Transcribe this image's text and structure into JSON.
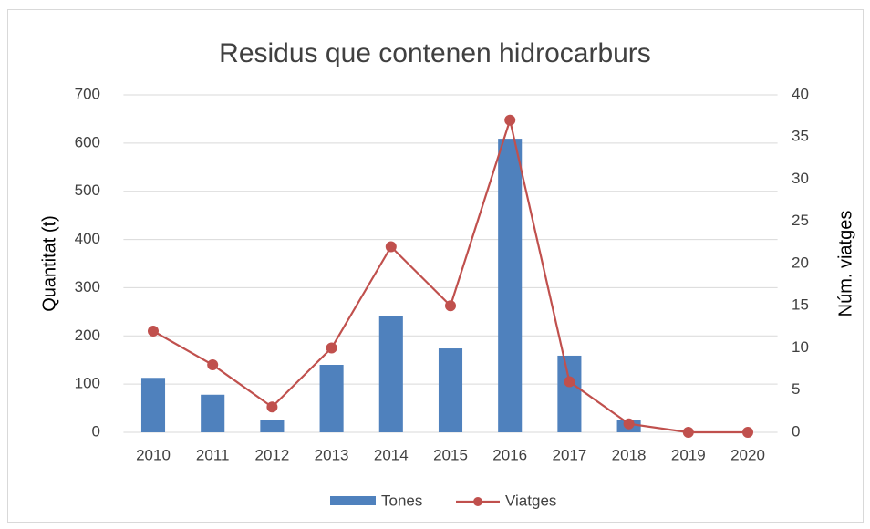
{
  "chart_data": {
    "type": "bar_line",
    "title": "Residus que contenen hidrocarburs",
    "categories": [
      "2010",
      "2011",
      "2012",
      "2013",
      "2014",
      "2015",
      "2016",
      "2017",
      "2018",
      "2019",
      "2020"
    ],
    "series": [
      {
        "name": "Tones",
        "color": "#4f81bd",
        "type": "bar",
        "values": [
          113,
          78,
          26,
          140,
          242,
          174,
          609,
          159,
          26,
          0,
          0
        ]
      },
      {
        "name": "Viatges",
        "color": "#c0504d",
        "type": "line",
        "axis": "y2",
        "values": [
          12,
          8,
          3,
          10,
          22,
          15,
          37,
          6,
          1,
          0,
          0
        ]
      }
    ],
    "ylabel": "Quantitat (t)",
    "y2label": "Núm. viatges",
    "ylim": [
      0,
      700
    ],
    "yticks": [
      0,
      100,
      200,
      300,
      400,
      500,
      600,
      700
    ],
    "y2lim": [
      0,
      40
    ],
    "y2ticks": [
      0,
      5,
      10,
      15,
      20,
      25,
      30,
      35,
      40
    ],
    "grid": true,
    "legend": "bottom"
  }
}
